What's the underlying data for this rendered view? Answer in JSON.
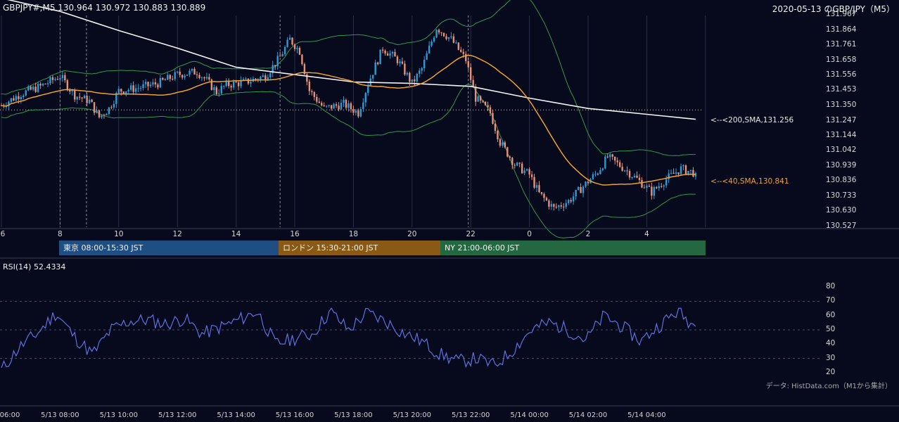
{
  "header": {
    "title": "GBPJPY#,M5 130.964 130.972 130.883 130.889",
    "right": "2020-05-13 のGBP/JPY（M5）"
  },
  "colors": {
    "background": "#060a1c",
    "bull_candle": "#2b9cd8",
    "bear_candle": "#e8907a",
    "sma200": "#f2f2f2",
    "sma40": "#f0a030",
    "bollinger": "#2f9a4a",
    "rsi": "#6070e0",
    "tokyo": "#1f4f82",
    "london": "#8a5a14",
    "ny": "#236840"
  },
  "sessions": [
    {
      "label": "東京 08:00-15:30 JST"
    },
    {
      "label": "ロンドン 15:30-21:00 JST"
    },
    {
      "label": "NY 21:00-06:00 JST"
    }
  ],
  "annotations": {
    "sma200": "<--<200,SMA,131.256",
    "sma40": "<--<40,SMA,130.841"
  },
  "rsi_panel": {
    "title": "RSI(14) 52.4334",
    "source": "データ: HistData.com（M1から集計）"
  },
  "chart_data": [
    {
      "type": "candlestick",
      "symbol": "GBPJPY#",
      "timeframe": "M5",
      "ohlc_last": {
        "open": 130.964,
        "high": 130.972,
        "low": 130.883,
        "close": 130.889
      },
      "y_ticks": [
        131.967,
        131.864,
        131.761,
        131.658,
        131.556,
        131.453,
        131.35,
        131.247,
        131.144,
        131.042,
        130.939,
        130.836,
        130.733,
        130.63,
        130.527
      ],
      "ylim": [
        130.527,
        131.967
      ],
      "x_ticks": [
        "6",
        "8",
        "10",
        "12",
        "14",
        "16",
        "18",
        "20",
        "22",
        "0",
        "2",
        "4"
      ],
      "reference_line": 131.32,
      "close_path": [
        {
          "t": "06:00",
          "v": 131.35
        },
        {
          "t": "06:40",
          "v": 131.43
        },
        {
          "t": "07:20",
          "v": 131.48
        },
        {
          "t": "08:00",
          "v": 131.55
        },
        {
          "t": "08:30",
          "v": 131.42
        },
        {
          "t": "09:00",
          "v": 131.38
        },
        {
          "t": "09:20",
          "v": 131.27
        },
        {
          "t": "09:40",
          "v": 131.33
        },
        {
          "t": "10:00",
          "v": 131.45
        },
        {
          "t": "10:40",
          "v": 131.47
        },
        {
          "t": "11:20",
          "v": 131.5
        },
        {
          "t": "12:00",
          "v": 131.56
        },
        {
          "t": "12:40",
          "v": 131.58
        },
        {
          "t": "13:00",
          "v": 131.52
        },
        {
          "t": "13:20",
          "v": 131.44
        },
        {
          "t": "13:40",
          "v": 131.49
        },
        {
          "t": "14:20",
          "v": 131.51
        },
        {
          "t": "15:00",
          "v": 131.55
        },
        {
          "t": "15:30",
          "v": 131.68
        },
        {
          "t": "15:50",
          "v": 131.8
        },
        {
          "t": "16:10",
          "v": 131.72
        },
        {
          "t": "16:30",
          "v": 131.45
        },
        {
          "t": "17:00",
          "v": 131.33
        },
        {
          "t": "17:40",
          "v": 131.36
        },
        {
          "t": "18:10",
          "v": 131.3
        },
        {
          "t": "18:30",
          "v": 131.5
        },
        {
          "t": "19:00",
          "v": 131.74
        },
        {
          "t": "19:30",
          "v": 131.66
        },
        {
          "t": "20:00",
          "v": 131.5
        },
        {
          "t": "20:20",
          "v": 131.6
        },
        {
          "t": "20:50",
          "v": 131.88
        },
        {
          "t": "21:20",
          "v": 131.8
        },
        {
          "t": "21:50",
          "v": 131.66
        },
        {
          "t": "22:10",
          "v": 131.4
        },
        {
          "t": "22:40",
          "v": 131.3
        },
        {
          "t": "23:00",
          "v": 131.1
        },
        {
          "t": "23:30",
          "v": 130.95
        },
        {
          "t": "00:00",
          "v": 130.88
        },
        {
          "t": "00:20",
          "v": 130.75
        },
        {
          "t": "00:50",
          "v": 130.65
        },
        {
          "t": "01:20",
          "v": 130.7
        },
        {
          "t": "01:50",
          "v": 130.8
        },
        {
          "t": "02:20",
          "v": 130.9
        },
        {
          "t": "02:40",
          "v": 131.0
        },
        {
          "t": "03:10",
          "v": 130.93
        },
        {
          "t": "03:40",
          "v": 130.85
        },
        {
          "t": "04:10",
          "v": 130.76
        },
        {
          "t": "04:40",
          "v": 130.85
        },
        {
          "t": "05:10",
          "v": 130.92
        },
        {
          "t": "05:40",
          "v": 130.889
        }
      ],
      "sma200_last": 131.256,
      "sma40_last": 130.841
    },
    {
      "type": "line",
      "name": "RSI(14)",
      "last": 52.4334,
      "y_ticks": [
        80,
        70,
        60,
        50,
        40,
        30,
        20
      ],
      "ylim": [
        20,
        80
      ],
      "x_ticks": [
        "06:00",
        "5/13 08:00",
        "5/13 10:00",
        "5/13 12:00",
        "5/13 14:00",
        "5/13 16:00",
        "5/13 18:00",
        "5/13 20:00",
        "5/13 22:00",
        "5/14 00:00",
        "5/14 02:00",
        "5/14 04:00"
      ],
      "values_hourly": [
        22,
        38,
        48,
        62,
        45,
        33,
        50,
        56,
        57,
        54,
        58,
        47,
        52,
        57,
        63,
        40,
        44,
        47,
        63,
        50,
        62,
        56,
        48,
        42,
        33,
        28,
        30,
        25,
        36,
        50,
        55,
        50,
        43,
        60,
        52,
        42,
        53,
        63,
        52
      ]
    }
  ]
}
